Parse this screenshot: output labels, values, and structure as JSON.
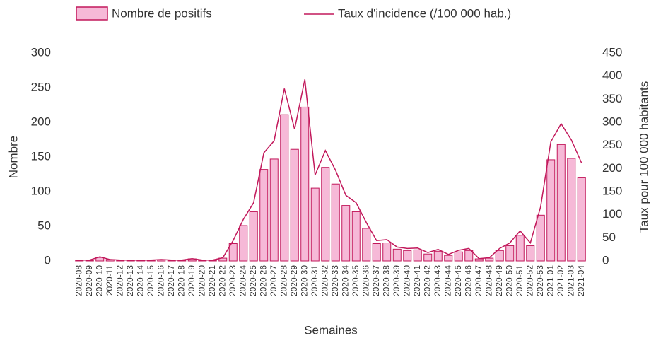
{
  "chart_data": {
    "type": "bar_line",
    "x_label": "Semaines",
    "y_label": "Nombre",
    "y2_label": "Taux pour 100 000 habitants",
    "categories": [
      "2020-08",
      "2020-09",
      "2020-10",
      "2020-11",
      "2020-12",
      "2020-13",
      "2020-14",
      "2020-15",
      "2020-16",
      "2020-17",
      "2020-18",
      "2020-19",
      "2020-20",
      "2020-21",
      "2020-22",
      "2020-23",
      "2020-24",
      "2020-25",
      "2020-26",
      "2020-27",
      "2020-28",
      "2020-29",
      "2020-30",
      "2020-31",
      "2020-32",
      "2020-33",
      "2020-34",
      "2020-35",
      "2020-36",
      "2020-37",
      "2020-38",
      "2020-39",
      "2020-40",
      "2020-41",
      "2020-42",
      "2020-43",
      "2020-44",
      "2020-45",
      "2020-46",
      "2020-47",
      "2020-48",
      "2020-49",
      "2020-50",
      "2020-51",
      "2020-52",
      "2020-53",
      "2021-01",
      "2021-02",
      "2021-03",
      "2021-04"
    ],
    "series": [
      {
        "name": "Nombre de positifs",
        "color": "#f6b9d7",
        "values": [
          1,
          1,
          5,
          2,
          1,
          1,
          1,
          1,
          2,
          1,
          1,
          3,
          1,
          1,
          4,
          25,
          51,
          71,
          132,
          147,
          211,
          161,
          222,
          105,
          135,
          111,
          80,
          71,
          47,
          25,
          26,
          17,
          15,
          16,
          10,
          14,
          8,
          13,
          15,
          3,
          4,
          15,
          22,
          37,
          22,
          66,
          146,
          168,
          148,
          120
        ]
      },
      {
        "name": "Taux d'incidence (/100 000 hab.)",
        "color": "#c2185b",
        "axis": "y2",
        "values": [
          2,
          2,
          9,
          3,
          2,
          2,
          2,
          2,
          3,
          2,
          2,
          5,
          2,
          2,
          7,
          44,
          90,
          126,
          234,
          260,
          373,
          285,
          393,
          186,
          239,
          196,
          142,
          126,
          83,
          44,
          46,
          30,
          27,
          28,
          18,
          25,
          14,
          23,
          27,
          5,
          7,
          27,
          39,
          65,
          39,
          117,
          258,
          297,
          262,
          212
        ]
      }
    ],
    "ylim": [
      0,
      300
    ],
    "yticks": [
      0,
      50,
      100,
      150,
      200,
      250,
      300
    ],
    "y2lim": [
      0,
      450
    ],
    "y2ticks": [
      0,
      50,
      100,
      150,
      200,
      250,
      300,
      350,
      400,
      450
    ]
  }
}
